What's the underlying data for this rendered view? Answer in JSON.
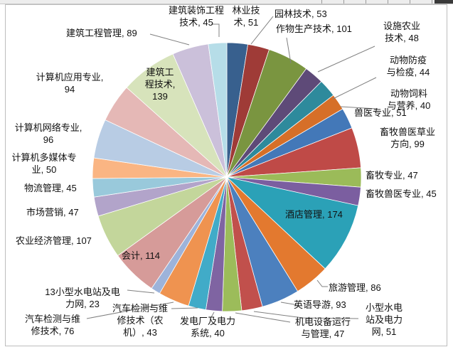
{
  "chart_data": {
    "type": "pie",
    "title": "",
    "legend": "none",
    "start_angle_deg": 0,
    "direction": "clockwise",
    "label_format": "category, value",
    "total": 2038,
    "slices": [
      {
        "label": "林业技术",
        "value": 51,
        "color": "#38608E"
      },
      {
        "label": "园林技术",
        "value": 53,
        "color": "#9F3B37"
      },
      {
        "label": "作物生产技术",
        "value": 101,
        "color": "#7A9540"
      },
      {
        "label": "设施农业技术",
        "value": 48,
        "color": "#5E4A78"
      },
      {
        "label": "动物防疫与检疫",
        "value": 44,
        "color": "#2E8A9C"
      },
      {
        "label": "动物饲料与营养",
        "value": 40,
        "color": "#D66F28"
      },
      {
        "label": "兽医专业",
        "value": 51,
        "color": "#4378B8"
      },
      {
        "label": "畜牧兽医草业方向",
        "value": 99,
        "color": "#BF4A47"
      },
      {
        "label": "畜牧专业",
        "value": 47,
        "color": "#9BBB59"
      },
      {
        "label": "畜牧兽医专业",
        "value": 45,
        "color": "#7B5EA0"
      },
      {
        "label": "酒店管理",
        "value": 174,
        "color": "#2BA1B7"
      },
      {
        "label": "旅游管理",
        "value": 86,
        "color": "#E3792F"
      },
      {
        "label": "英语导游",
        "value": 93,
        "color": "#4C80BE"
      },
      {
        "label": "小型水电站及电力网",
        "value": 51,
        "color": "#C1504C"
      },
      {
        "label": "机电设备运行与管理",
        "value": 47,
        "color": "#9CBC5A"
      },
      {
        "label": "发电厂及电力系统",
        "value": 40,
        "color": "#7F64A2"
      },
      {
        "label": "汽车检测与维修技术（农机）",
        "value": 43,
        "color": "#41ABC8"
      },
      {
        "label": "汽车检测与维修技术",
        "value": 76,
        "color": "#EF9350"
      },
      {
        "label": "13小型水电站及电力网",
        "value": 23,
        "color": "#9DB3DA"
      },
      {
        "label": "会计",
        "value": 114,
        "color": "#D69B99"
      },
      {
        "label": "农业经济管理",
        "value": 107,
        "color": "#C3D69B"
      },
      {
        "label": "市场营销",
        "value": 47,
        "color": "#B2A4CA"
      },
      {
        "label": "物流管理",
        "value": 45,
        "color": "#99C9DB"
      },
      {
        "label": "计算机多媒体专业",
        "value": 50,
        "color": "#FAB583"
      },
      {
        "label": "计算机网络专业",
        "value": 96,
        "color": "#B8CCE4"
      },
      {
        "label": "计算机应用专业",
        "value": 94,
        "color": "#E5B8B6"
      },
      {
        "label": "建筑工程技术",
        "value": 139,
        "color": "#D7E3BB"
      },
      {
        "label": "建筑工程管理",
        "value": 89,
        "color": "#CBC0DA"
      },
      {
        "label": "建筑装饰工程技术",
        "value": 45,
        "color": "#B6DDE8"
      }
    ]
  }
}
